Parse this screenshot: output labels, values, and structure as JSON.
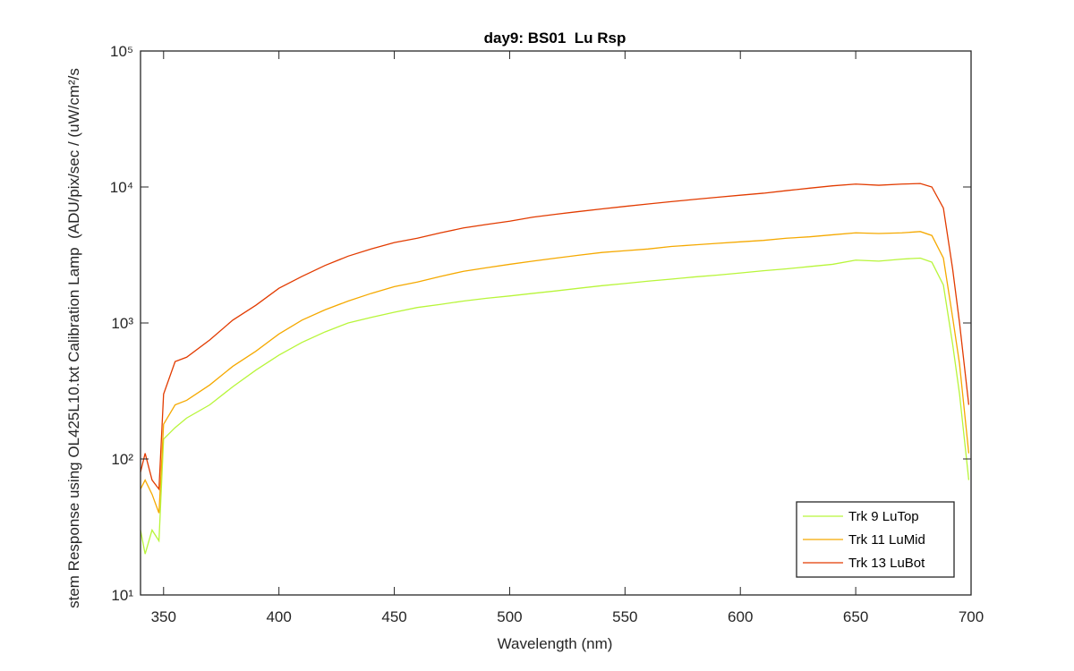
{
  "chart_data": {
    "type": "line",
    "title": "day9: BS01  Lu Rsp",
    "xlabel": "Wavelength (nm)",
    "ylabel": "stem Response using OL425L10.txt Calibration Lamp  (ADU/pix/sec / (uW/cm²/s",
    "x": [
      340,
      342,
      345,
      348,
      350,
      355,
      360,
      370,
      380,
      390,
      400,
      410,
      420,
      430,
      440,
      450,
      460,
      470,
      480,
      490,
      500,
      510,
      520,
      530,
      540,
      550,
      560,
      570,
      580,
      590,
      600,
      610,
      620,
      630,
      640,
      650,
      660,
      670,
      678,
      683,
      688,
      692,
      695,
      699
    ],
    "series": [
      {
        "name": "Trk 9 LuTop",
        "color": "#b8f53a",
        "values": [
          30,
          20,
          30,
          25,
          140,
          170,
          200,
          250,
          340,
          450,
          580,
          720,
          860,
          1000,
          1100,
          1200,
          1300,
          1370,
          1450,
          1520,
          1580,
          1650,
          1720,
          1800,
          1880,
          1950,
          2030,
          2100,
          2180,
          2250,
          2330,
          2420,
          2500,
          2600,
          2700,
          2900,
          2850,
          2950,
          3000,
          2800,
          1900,
          700,
          300,
          70
        ]
      },
      {
        "name": "Trk 11 LuMid",
        "color": "#f5a900",
        "values": [
          60,
          70,
          55,
          40,
          180,
          250,
          270,
          350,
          480,
          620,
          830,
          1050,
          1250,
          1450,
          1650,
          1850,
          2000,
          2200,
          2400,
          2550,
          2700,
          2850,
          3000,
          3150,
          3300,
          3400,
          3500,
          3650,
          3750,
          3850,
          3950,
          4050,
          4200,
          4300,
          4450,
          4600,
          4550,
          4600,
          4700,
          4400,
          3000,
          1100,
          500,
          110
        ]
      },
      {
        "name": "Trk 13 LuBot",
        "color": "#e23b00",
        "values": [
          80,
          110,
          70,
          60,
          300,
          520,
          560,
          750,
          1050,
          1350,
          1800,
          2200,
          2650,
          3100,
          3500,
          3900,
          4200,
          4600,
          5000,
          5300,
          5600,
          6000,
          6300,
          6600,
          6900,
          7200,
          7500,
          7800,
          8100,
          8400,
          8700,
          9000,
          9400,
          9800,
          10200,
          10500,
          10300,
          10500,
          10600,
          10000,
          7000,
          2500,
          1000,
          250
        ]
      }
    ],
    "xlim": [
      340,
      700
    ],
    "xticks": [
      350,
      400,
      450,
      500,
      550,
      600,
      650,
      700
    ],
    "ylim": [
      10,
      100000
    ],
    "yscale": "log",
    "yticks": [
      {
        "value": 10,
        "label": "10¹"
      },
      {
        "value": 100,
        "label": "10²"
      },
      {
        "value": 1000,
        "label": "10³"
      },
      {
        "value": 10000,
        "label": "10⁴"
      },
      {
        "value": 100000,
        "label": "10⁵"
      }
    ],
    "legend": "lower right"
  }
}
